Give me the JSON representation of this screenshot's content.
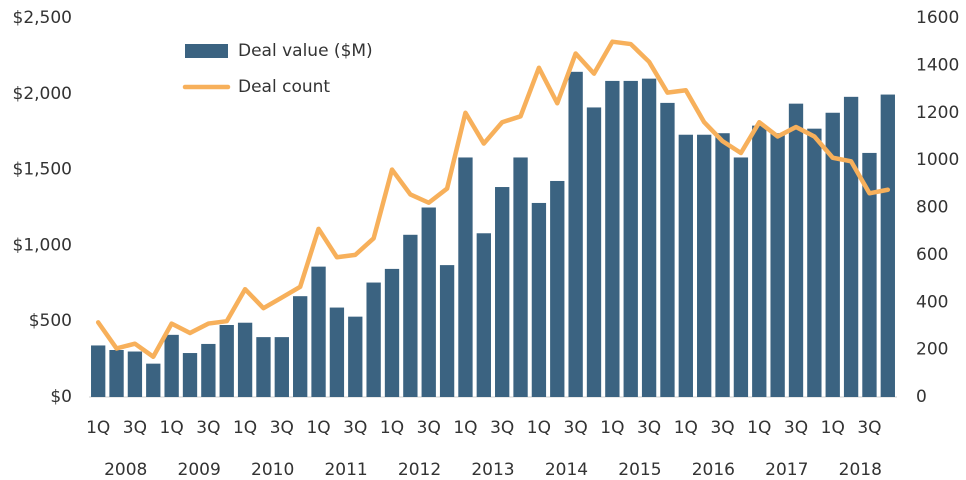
{
  "chart_data": {
    "type": "bar",
    "categories": [
      "1Q",
      null,
      "3Q",
      null,
      "1Q",
      null,
      "3Q",
      null,
      "1Q",
      null,
      "3Q",
      null,
      "1Q",
      null,
      "3Q",
      null,
      "1Q",
      null,
      "3Q",
      null,
      "1Q",
      null,
      "3Q",
      null,
      "1Q",
      null,
      "3Q",
      null,
      "1Q",
      null,
      "3Q",
      null,
      "1Q",
      null,
      "3Q",
      null,
      "1Q",
      null,
      "3Q",
      null,
      "1Q",
      null,
      "3Q",
      null
    ],
    "years": [
      "2008",
      "2009",
      "2010",
      "2011",
      "2012",
      "2013",
      "2014",
      "2015",
      "2016",
      "2017",
      "2018"
    ],
    "series": [
      {
        "name": "Deal value ($M)",
        "type": "bar",
        "axis": "y",
        "color": "#3b6381",
        "values": [
          340,
          310,
          300,
          220,
          410,
          290,
          350,
          475,
          490,
          395,
          395,
          665,
          860,
          590,
          530,
          755,
          845,
          1070,
          1250,
          870,
          1580,
          1080,
          1385,
          1580,
          1280,
          1425,
          2145,
          1910,
          2085,
          2085,
          2100,
          1940,
          1730,
          1730,
          1740,
          1580,
          1790,
          1740,
          1935,
          1770,
          1875,
          1980,
          1610,
          1995
        ]
      },
      {
        "name": "Deal count",
        "type": "line",
        "axis": "y2",
        "color": "#f7b05b",
        "values": [
          315,
          205,
          225,
          170,
          310,
          270,
          310,
          320,
          455,
          375,
          420,
          465,
          710,
          590,
          600,
          670,
          960,
          855,
          820,
          880,
          1200,
          1070,
          1160,
          1185,
          1390,
          1240,
          1450,
          1365,
          1500,
          1490,
          1415,
          1285,
          1295,
          1160,
          1080,
          1030,
          1160,
          1100,
          1140,
          1100,
          1010,
          995,
          860,
          875
        ]
      }
    ],
    "ylim": [
      0,
      2500
    ],
    "yticks": [
      {
        "value": 0,
        "label": "$0"
      },
      {
        "value": 500,
        "label": "$500"
      },
      {
        "value": 1000,
        "label": "$1,000"
      },
      {
        "value": 1500,
        "label": "$1,500"
      },
      {
        "value": 2000,
        "label": "$2,000"
      },
      {
        "value": 2500,
        "label": "$2,500"
      }
    ],
    "y2lim": [
      0,
      1600
    ],
    "y2ticks": [
      0,
      200,
      400,
      600,
      800,
      1000,
      1200,
      1400,
      1600
    ],
    "grid": false,
    "legend": "top-left"
  }
}
